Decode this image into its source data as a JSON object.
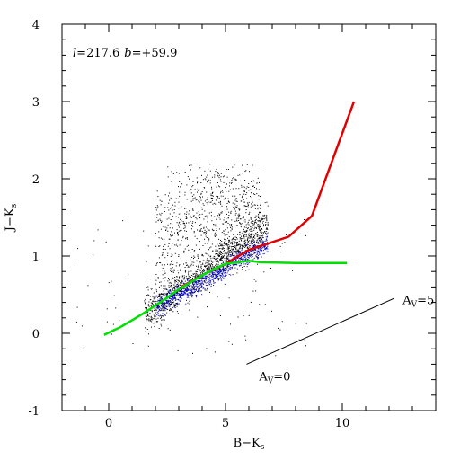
{
  "chart_data": {
    "type": "scatter",
    "title": "",
    "xlabel": "B−K",
    "xlabel_sub": "s",
    "ylabel": "J−K",
    "ylabel_sub": "s",
    "xlim": [
      -2,
      14
    ],
    "ylim": [
      -1,
      4
    ],
    "x_ticks": [
      0,
      5,
      10
    ],
    "y_ticks": [
      -1,
      0,
      1,
      2,
      3,
      4
    ],
    "x_minor_step": 1,
    "y_minor_step": 0.2,
    "grid": false,
    "annotation": {
      "l_symbol": "l",
      "l_value": "=217.6",
      "b_symbol": "b",
      "b_value": "=+59.9"
    },
    "reddening_vector": {
      "start": [
        5.9,
        -0.4
      ],
      "end": [
        12.2,
        0.45
      ],
      "label_start_main": "A",
      "label_start_sub": "V",
      "label_start_value": "=0",
      "label_end_main": "A",
      "label_end_sub": "V",
      "label_end_value": "=5"
    },
    "stars": {
      "color": "#000000",
      "n_points": 2200
    },
    "dense_stars": {
      "color": "#0000cc"
    },
    "series": [
      {
        "color": "#e00000",
        "x": [
          3.1,
          4.0,
          5.0,
          6.0,
          6.5,
          7.7,
          8.7,
          10.5
        ],
        "y": [
          0.6,
          0.75,
          0.9,
          1.08,
          1.13,
          1.25,
          1.52,
          3.0
        ]
      },
      {
        "color": "#00e000",
        "x": [
          -0.2,
          0.5,
          1.0,
          1.5,
          2.0,
          2.5,
          3.0,
          3.5,
          4.0,
          4.5,
          5.0,
          6.0,
          6.5,
          8.0,
          10.2
        ],
        "y": [
          -0.02,
          0.08,
          0.17,
          0.26,
          0.36,
          0.46,
          0.57,
          0.66,
          0.75,
          0.83,
          0.9,
          0.94,
          0.92,
          0.91,
          0.91
        ]
      }
    ]
  }
}
